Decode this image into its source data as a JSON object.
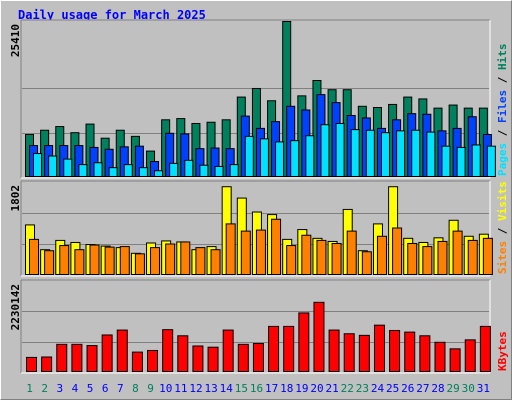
{
  "title": "Daily usage for March 2025",
  "colors": {
    "hits": "#00805c",
    "files": "#0040ff",
    "pages": "#00e0ff",
    "visits": "#ffff00",
    "sites": "#ff8000",
    "kbytes": "#ff0000",
    "weekend_day": "#00805c",
    "weekday": "#0000ff",
    "panel_bg": "#c0c0c0",
    "grid": "#808080"
  },
  "chart_data": [
    {
      "type": "bar",
      "name": "hits-files-pages",
      "categories": [
        "1",
        "2",
        "3",
        "4",
        "5",
        "6",
        "7",
        "8",
        "9",
        "10",
        "11",
        "12",
        "13",
        "14",
        "15",
        "16",
        "17",
        "18",
        "19",
        "20",
        "21",
        "22",
        "23",
        "24",
        "25",
        "26",
        "27",
        "28",
        "29",
        "30",
        "31"
      ],
      "ylabel_max": "25410",
      "legend": [
        "Pages",
        "Files",
        "Hits"
      ],
      "ylim": [
        0,
        25410
      ],
      "series": [
        {
          "name": "Hits",
          "values": [
            7000,
            7700,
            8300,
            7300,
            8700,
            6400,
            7700,
            6700,
            4300,
            9400,
            9600,
            8800,
            9000,
            9400,
            13100,
            14500,
            12500,
            25410,
            13300,
            15800,
            14300,
            14300,
            11600,
            11400,
            11900,
            13100,
            12800,
            11300,
            11800,
            11300,
            11300
          ]
        },
        {
          "name": "Files",
          "values": [
            5200,
            5200,
            5200,
            5200,
            4900,
            4600,
            5000,
            5100,
            2600,
            7200,
            7100,
            4700,
            4800,
            4700,
            10000,
            8000,
            9100,
            11600,
            11000,
            13500,
            12200,
            10100,
            9700,
            8000,
            9400,
            10400,
            10300,
            7600,
            8000,
            9900,
            7000
          ]
        },
        {
          "name": "Pages",
          "values": [
            3900,
            3500,
            3000,
            2100,
            2400,
            1600,
            2100,
            1600,
            1100,
            2300,
            2800,
            2000,
            1800,
            2100,
            6700,
            6300,
            5800,
            6000,
            6800,
            8600,
            8800,
            7800,
            7700,
            7300,
            7600,
            7700,
            7400,
            5100,
            4900,
            5300,
            5100
          ]
        }
      ]
    },
    {
      "type": "bar",
      "name": "visits-sites",
      "categories": [
        "1",
        "2",
        "3",
        "4",
        "5",
        "6",
        "7",
        "8",
        "9",
        "10",
        "11",
        "12",
        "13",
        "14",
        "15",
        "16",
        "17",
        "18",
        "19",
        "20",
        "21",
        "22",
        "23",
        "24",
        "25",
        "26",
        "27",
        "28",
        "29",
        "30",
        "31"
      ],
      "ylabel_max": "1802",
      "legend": [
        "Sites",
        "Visits"
      ],
      "ylim": [
        0,
        1802
      ],
      "series": [
        {
          "name": "Visits",
          "values": [
            980,
            500,
            680,
            640,
            600,
            570,
            540,
            430,
            630,
            670,
            650,
            500,
            560,
            1720,
            1500,
            1230,
            1180,
            700,
            890,
            720,
            660,
            1280,
            480,
            1000,
            1720,
            720,
            640,
            730,
            1070,
            760,
            800
          ]
        },
        {
          "name": "Sites",
          "values": [
            700,
            480,
            580,
            500,
            590,
            550,
            560,
            420,
            540,
            610,
            650,
            540,
            500,
            1000,
            860,
            880,
            1090,
            580,
            780,
            680,
            620,
            860,
            460,
            760,
            920,
            620,
            560,
            660,
            860,
            680,
            720
          ]
        }
      ]
    },
    {
      "type": "bar",
      "name": "kbytes",
      "categories": [
        "1",
        "2",
        "3",
        "4",
        "5",
        "6",
        "7",
        "8",
        "9",
        "10",
        "11",
        "12",
        "13",
        "14",
        "15",
        "16",
        "17",
        "18",
        "19",
        "20",
        "21",
        "22",
        "23",
        "24",
        "25",
        "26",
        "27",
        "28",
        "29",
        "30",
        "31"
      ],
      "ylabel_max": "2230142",
      "legend": [
        "KBytes"
      ],
      "ylim": [
        0,
        2230142
      ],
      "series": [
        {
          "name": "KBytes",
          "values": [
            370000,
            380000,
            690000,
            690000,
            660000,
            920000,
            1040000,
            500000,
            540000,
            1050000,
            900000,
            650000,
            620000,
            1040000,
            690000,
            710000,
            1130000,
            1130000,
            1460000,
            1720000,
            1040000,
            950000,
            910000,
            1160000,
            1030000,
            990000,
            900000,
            740000,
            580000,
            800000,
            1130000
          ]
        }
      ]
    }
  ]
}
